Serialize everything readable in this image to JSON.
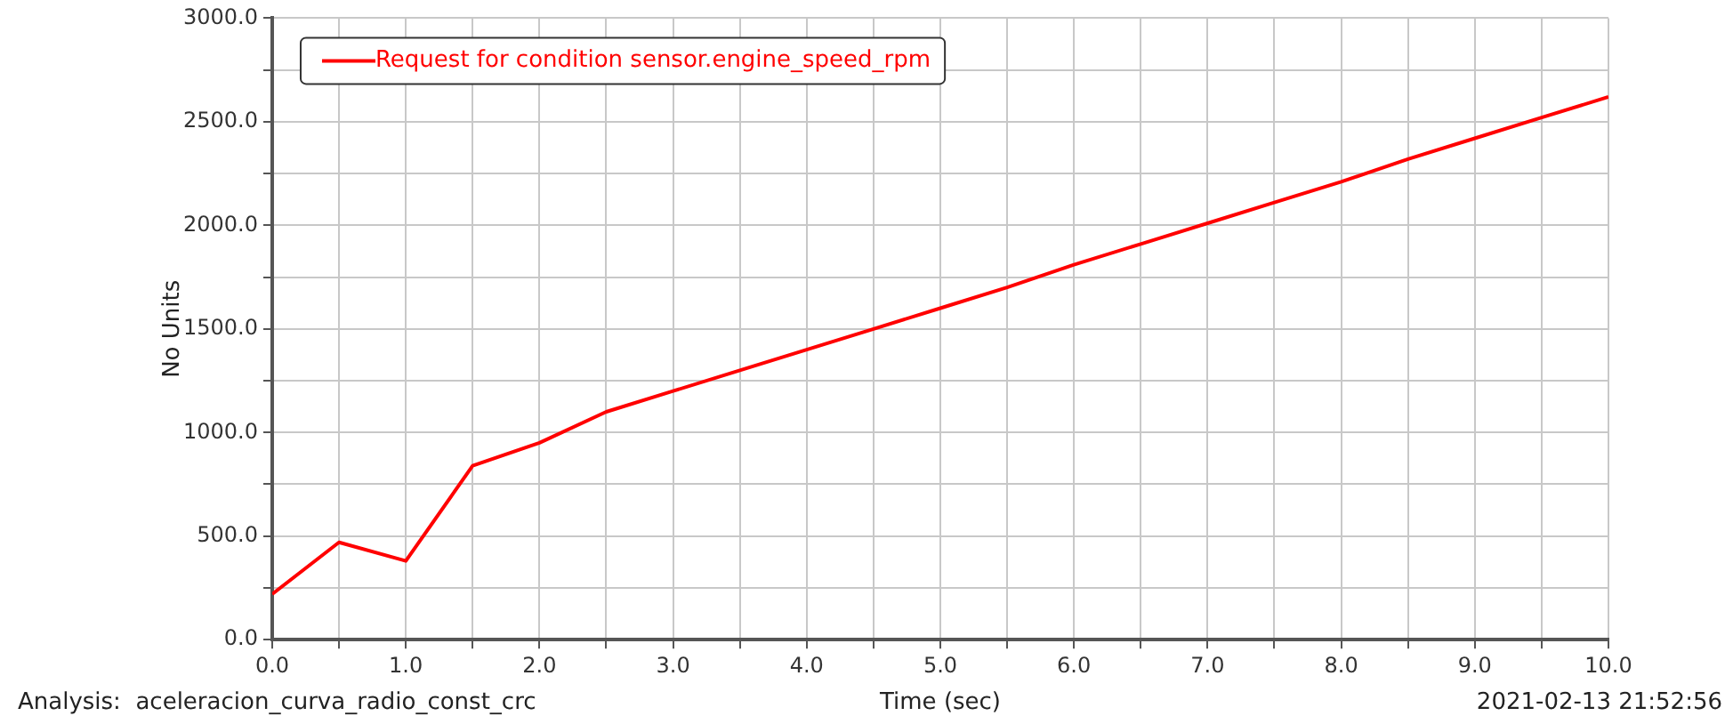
{
  "chart_data": {
    "type": "line",
    "xlabel": "Time (sec)",
    "ylabel": "No Units",
    "annotations": [
      "Analysis:  aceleracion_curva_radio_const_crc",
      "2021-02-13 21:52:56"
    ],
    "x": [
      0,
      0.5,
      1,
      1.5,
      2,
      2.5,
      3,
      3.5,
      4,
      4.5,
      5,
      5.5,
      6,
      6.5,
      7,
      7.5,
      8,
      8.5,
      9,
      9.5,
      10
    ],
    "series": [
      {
        "name": "Request for condition sensor.engine_speed_rpm",
        "color": "#ff0000",
        "values": [
          220,
          470,
          380,
          840,
          950,
          1100,
          1200,
          1300,
          1400,
          1500,
          1600,
          1700,
          1810,
          1910,
          2010,
          2110,
          2210,
          2320,
          2420,
          2520,
          2620
        ]
      }
    ],
    "xlim": [
      0,
      10
    ],
    "xticks": [
      {
        "value": 0,
        "label": "0.0"
      },
      {
        "value": 0.5,
        "label": null
      },
      {
        "value": 1,
        "label": "1.0"
      },
      {
        "value": 1.5,
        "label": null
      },
      {
        "value": 2,
        "label": "2.0"
      },
      {
        "value": 2.5,
        "label": null
      },
      {
        "value": 3,
        "label": "3.0"
      },
      {
        "value": 3.5,
        "label": null
      },
      {
        "value": 4,
        "label": "4.0"
      },
      {
        "value": 4.5,
        "label": null
      },
      {
        "value": 5,
        "label": "5.0"
      },
      {
        "value": 5.5,
        "label": null
      },
      {
        "value": 6,
        "label": "6.0"
      },
      {
        "value": 6.5,
        "label": null
      },
      {
        "value": 7,
        "label": "7.0"
      },
      {
        "value": 7.5,
        "label": null
      },
      {
        "value": 8,
        "label": "8.0"
      },
      {
        "value": 8.5,
        "label": null
      },
      {
        "value": 9,
        "label": "9.0"
      },
      {
        "value": 9.5,
        "label": null
      },
      {
        "value": 10,
        "label": "10.0"
      }
    ],
    "ylim": [
      0,
      3000
    ],
    "yticks": [
      {
        "value": 0,
        "label": "0.0"
      },
      {
        "value": 250,
        "label": null
      },
      {
        "value": 500,
        "label": "500.0"
      },
      {
        "value": 750,
        "label": null
      },
      {
        "value": 1000,
        "label": "1000.0"
      },
      {
        "value": 1250,
        "label": null
      },
      {
        "value": 1500,
        "label": "1500.0"
      },
      {
        "value": 1750,
        "label": null
      },
      {
        "value": 2000,
        "label": "2000.0"
      },
      {
        "value": 2250,
        "label": null
      },
      {
        "value": 2500,
        "label": "2500.0"
      },
      {
        "value": 2750,
        "label": null
      },
      {
        "value": 3000,
        "label": "3000.0"
      }
    ],
    "grid": true,
    "legend": "top left",
    "marker": "none",
    "line_style": "solid"
  }
}
